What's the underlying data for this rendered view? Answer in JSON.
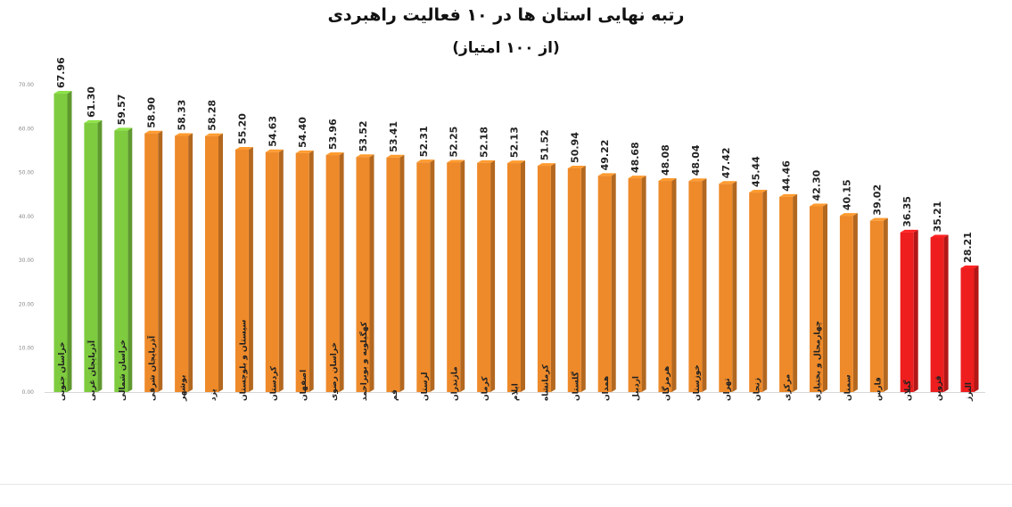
{
  "chart_data": {
    "type": "bar",
    "title": "رتبه نهایی استان ها در ۱۰ فعالیت راهبردی",
    "subtitle": "(از ۱۰۰ امتیاز)",
    "xlabel": "",
    "ylabel": "",
    "ylim": [
      0,
      70
    ],
    "ytick_labels": [
      "0.00",
      "10.00",
      "20.00",
      "30.00",
      "40.00",
      "50.00",
      "60.00",
      "70.00"
    ],
    "grid": false,
    "legend": "none",
    "categories": [
      "خراسان جنوبی",
      "آذربایجان غربی",
      "خراسان شمالی",
      "آذربایجان شرقی",
      "بوشهر",
      "یزد",
      "سیستان و بلوچستان",
      "کردستان",
      "اصفهان",
      "خراسان رضوی",
      "کهگیلویه و بویراحمد",
      "قم",
      "لرستان",
      "مازندران",
      "کرمان",
      "ایلام",
      "کرمانشاه",
      "گلستان",
      "همدان",
      "اردبیل",
      "هرمزگان",
      "خوزستان",
      "تهران",
      "زنجان",
      "مرکزی",
      "چهارمحال و بختیاری",
      "سمنان",
      "فارس",
      "گیلان",
      "قزوین",
      "البرز"
    ],
    "value_labels": [
      "67.96",
      "61.30",
      "59.57",
      "58.90",
      "58.33",
      "58.28",
      "55.20",
      "54.63",
      "54.40",
      "53.96",
      "53.52",
      "53.41",
      "52.31",
      "52.25",
      "52.18",
      "52.13",
      "51.52",
      "50.94",
      "49.22",
      "48.68",
      "48.08",
      "48.04",
      "47.42",
      "45.44",
      "44.46",
      "42.30",
      "40.15",
      "39.02",
      "36.35",
      "35.21",
      "28.21"
    ],
    "values": [
      67.96,
      61.3,
      59.57,
      58.9,
      58.33,
      58.28,
      55.2,
      54.63,
      54.4,
      53.96,
      53.52,
      53.41,
      52.31,
      52.25,
      52.18,
      52.13,
      51.52,
      50.94,
      49.22,
      48.68,
      48.08,
      48.04,
      47.42,
      45.44,
      44.46,
      42.3,
      40.15,
      39.02,
      36.35,
      35.21,
      28.21
    ],
    "bar_colors": [
      "#7ecb3f",
      "#7ecb3f",
      "#7ecb3f",
      "#ee8a2a",
      "#ee8a2a",
      "#ee8a2a",
      "#ee8a2a",
      "#ee8a2a",
      "#ee8a2a",
      "#ee8a2a",
      "#ee8a2a",
      "#ee8a2a",
      "#ee8a2a",
      "#ee8a2a",
      "#ee8a2a",
      "#ee8a2a",
      "#ee8a2a",
      "#ee8a2a",
      "#ee8a2a",
      "#ee8a2a",
      "#ee8a2a",
      "#ee8a2a",
      "#ee8a2a",
      "#ee8a2a",
      "#ee8a2a",
      "#ee8a2a",
      "#ee8a2a",
      "#ee8a2a",
      "#ee1e1e",
      "#ee1e1e",
      "#ee1e1e"
    ],
    "colors": {
      "top": "#7ecb3f",
      "middle": "#ee8a2a",
      "bottom": "#ee1e1e"
    }
  }
}
